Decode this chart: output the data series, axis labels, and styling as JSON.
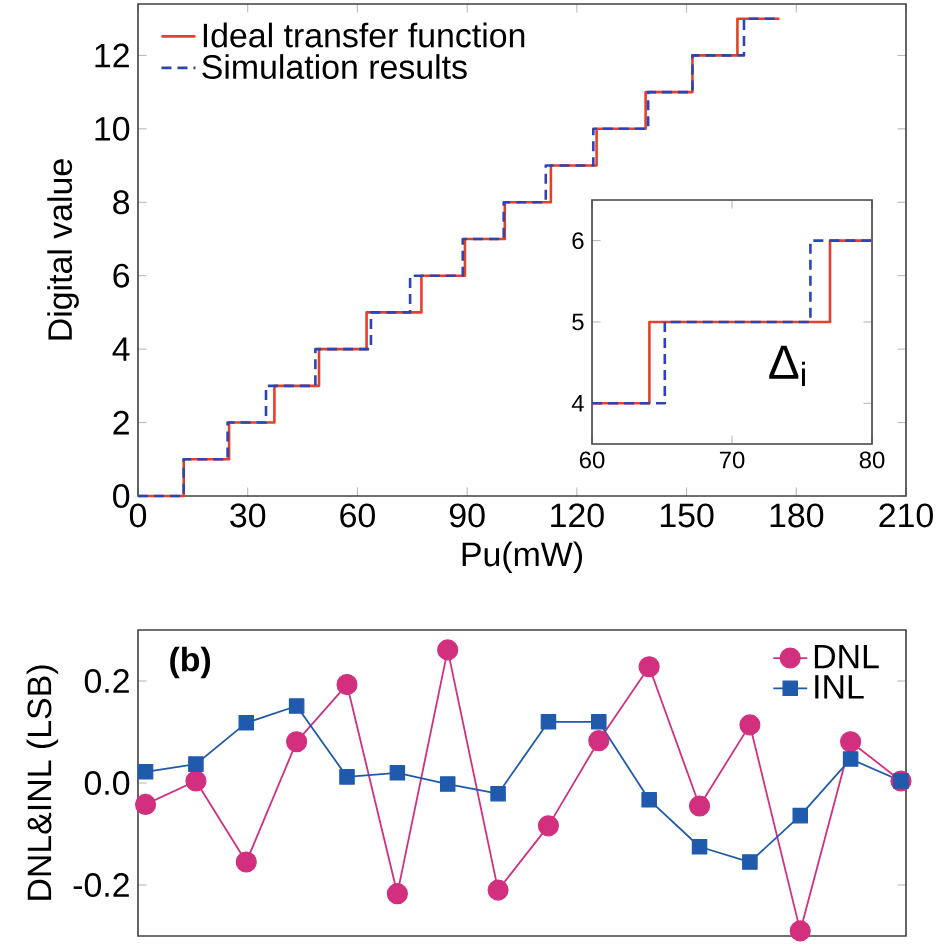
{
  "chart_data": [
    {
      "type": "step",
      "xlabel": "Pu(mW)",
      "ylabel": "Digital value",
      "xlim": [
        0,
        210
      ],
      "ylim": [
        0,
        13.4
      ],
      "xticks": [
        0,
        30,
        60,
        90,
        120,
        150,
        180,
        210
      ],
      "yticks": [
        0,
        2,
        4,
        6,
        8,
        10,
        12
      ],
      "legend": "top left",
      "series": [
        {
          "name": "Ideal transfer function",
          "color": "#e4402a",
          "line_style": "solid",
          "x": [
            0,
            12.5,
            24.9,
            37.3,
            49.5,
            62.5,
            77.5,
            89.4,
            100.3,
            112.9,
            125.4,
            138.8,
            151.6,
            163.9,
            175.4
          ],
          "values": [
            0,
            1,
            2,
            3,
            4,
            5,
            6,
            7,
            8,
            9,
            10,
            11,
            12,
            13,
            13
          ]
        },
        {
          "name": "Simulation results",
          "color": "#2a45b5",
          "line_style": "dashed",
          "x": [
            0,
            12.5,
            24.5,
            35,
            48.5,
            63.7,
            74.4,
            88.8,
            100,
            111.5,
            124.5,
            139.5,
            151.6,
            165.7,
            175.4
          ],
          "values": [
            0,
            1,
            2,
            3,
            4,
            5,
            6,
            7,
            8,
            9,
            10,
            11,
            12,
            13,
            13
          ]
        }
      ]
    },
    {
      "type": "step",
      "xlim": [
        60,
        80
      ],
      "ylim": [
        3.5,
        6.5
      ],
      "xticks": [
        60,
        70,
        80
      ],
      "yticks": [
        4,
        5,
        6
      ],
      "annotations": [
        "Δ$_{i}$"
      ],
      "series": [
        {
          "color": "#e4402a",
          "line_style": "solid",
          "x": [
            60,
            64.1,
            77,
            80
          ],
          "values": [
            4,
            5,
            6,
            6
          ]
        },
        {
          "color": "#2a45b5",
          "line_style": "dashed",
          "x": [
            60,
            65.2,
            75.6,
            80
          ],
          "values": [
            4,
            5,
            6,
            6
          ]
        }
      ]
    },
    {
      "type": "line",
      "ylabel": "DNL&INL (LSB)",
      "ylim": [
        -0.3,
        0.3
      ],
      "yticks": [
        {
          "value": -0.2,
          "label": "-0.2"
        },
        {
          "value": 0,
          "label": "0.0"
        },
        {
          "value": 0.2,
          "label": "0.2"
        }
      ],
      "tick_labels": "y",
      "legend": "top right",
      "annotations": [
        "(b)"
      ],
      "categories": [
        null,
        null,
        null,
        null,
        null,
        null,
        null,
        null,
        null,
        null,
        null,
        null,
        null,
        null,
        null,
        null
      ],
      "series": [
        {
          "name": "DNL",
          "color": "#d2307f",
          "marker": "circle",
          "values": [
            -0.042,
            0.004,
            -0.155,
            0.081,
            0.193,
            -0.217,
            0.261,
            -0.21,
            -0.084,
            0.083,
            0.228,
            -0.045,
            0.114,
            -0.29,
            0.081,
            0.004
          ]
        },
        {
          "name": "INL",
          "color": "#1f5aad",
          "marker": "square",
          "values": [
            0.022,
            0.037,
            0.118,
            0.151,
            0.012,
            0.02,
            -0.002,
            -0.021,
            0.12,
            0.12,
            -0.033,
            -0.125,
            -0.155,
            -0.064,
            0.047,
            0.004
          ]
        }
      ]
    }
  ]
}
